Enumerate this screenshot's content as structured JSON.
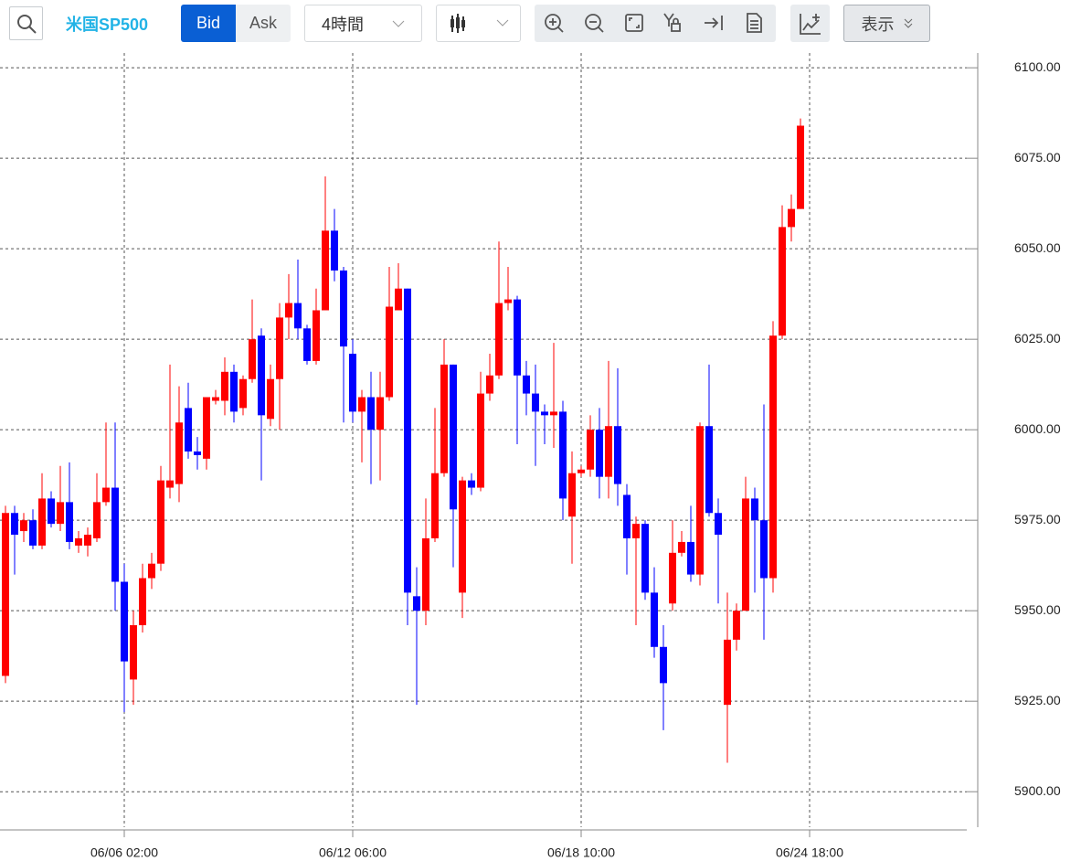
{
  "toolbar": {
    "symbol": "米国SP500",
    "bid": "Bid",
    "ask": "Ask",
    "interval": "4時間",
    "view": "表示"
  },
  "chart_data": {
    "type": "candlestick",
    "categories": [
      null,
      null,
      null,
      null,
      null,
      null,
      null,
      null,
      null,
      null,
      null,
      null,
      null,
      null,
      null,
      null,
      null,
      null,
      null,
      null,
      null,
      null,
      null,
      null,
      null,
      null,
      null,
      null,
      null,
      null,
      null,
      null,
      null,
      null,
      null,
      null,
      null,
      null,
      null,
      null,
      null,
      null,
      null,
      null,
      null,
      null,
      null,
      null,
      null,
      null,
      null,
      null,
      null,
      null,
      null,
      null,
      null,
      null,
      null,
      null,
      null,
      null,
      null,
      null,
      null,
      null,
      null,
      null,
      null,
      null,
      null,
      null,
      null,
      null,
      null,
      null,
      null,
      null,
      null,
      null,
      null,
      null,
      null,
      null,
      null,
      null,
      null,
      null
    ],
    "open": [
      5932,
      5977,
      5972,
      5975,
      5968,
      5981,
      5974,
      5980,
      5968,
      5968,
      5970,
      5980,
      5984,
      5958,
      5931,
      5946,
      5959,
      5963,
      5984,
      5985,
      6006,
      5994,
      5992,
      6008,
      6008,
      6016,
      6006,
      6014,
      6026,
      6003,
      6014,
      6031,
      6035,
      6028,
      6019,
      6033,
      6055,
      6044,
      6021,
      6005,
      6009,
      6000,
      6009,
      6033,
      6039,
      5954,
      5950,
      5970,
      5988,
      6018,
      5955,
      5986,
      5984,
      6010,
      6015,
      6035,
      6036,
      6015,
      6010,
      6005,
      6004,
      6005,
      5976,
      5988,
      5989,
      6000,
      5987,
      6001,
      5982,
      5970,
      5974,
      5955,
      5940,
      5952,
      5966,
      5969,
      5960,
      6001,
      5977,
      5924,
      5942,
      5950,
      5981,
      5975,
      5959,
      6026,
      6056,
      6061
    ],
    "high": [
      5979,
      5979,
      5977,
      5978,
      5988,
      5983,
      5990,
      5991,
      5972,
      5973,
      5988,
      6002,
      6002,
      5963,
      5950,
      5963,
      5966,
      5990,
      6018,
      6012,
      6013,
      5998,
      6009,
      6011,
      6020,
      6018,
      6015,
      6036,
      6028,
      6018,
      6035,
      6043,
      6047,
      6029,
      6039,
      6070,
      6061,
      6045,
      6025,
      6011,
      6016,
      6016,
      6045,
      6046,
      6039,
      5962,
      5981,
      6006,
      6025,
      6018,
      5987,
      5988,
      6016,
      6021,
      6052,
      6045,
      6037,
      6019,
      6018,
      6007,
      6024,
      6008,
      5994,
      5990,
      6004,
      6006,
      6019,
      6017,
      5985,
      5976,
      5975,
      5962,
      5946,
      5975,
      5972,
      5979,
      6002,
      6018,
      5981,
      5955,
      5952,
      5987,
      5984,
      6007,
      6030,
      6062,
      6065,
      6086
    ],
    "low": [
      5930,
      5960,
      5969,
      5967,
      5967,
      5973,
      5972,
      5967,
      5966,
      5965,
      5969,
      5979,
      5950,
      5922,
      5924,
      5944,
      5956,
      5961,
      5981,
      5980,
      5992,
      5989,
      5989,
      6007,
      6004,
      6002,
      6004,
      6013,
      5986,
      6001,
      6000,
      6025,
      6025,
      6018,
      6018,
      6033,
      6041,
      6002,
      6002,
      5991,
      5985,
      5986,
      6008,
      6034,
      5946,
      5924,
      5946,
      5969,
      5987,
      5962,
      5948,
      5982,
      5983,
      6008,
      6014,
      6033,
      5996,
      6004,
      5990,
      5996,
      5995,
      5975,
      5963,
      5987,
      5987,
      5981,
      5981,
      5979,
      5960,
      5946,
      5953,
      5937,
      5917,
      5950,
      5965,
      5958,
      5957,
      5976,
      5952,
      5908,
      5939,
      5950,
      5955,
      5942,
      5955,
      6025,
      6052,
      6061
    ],
    "close": [
      5977,
      5971,
      5975,
      5968,
      5981,
      5974,
      5980,
      5969,
      5970,
      5971,
      5980,
      5984,
      5958,
      5936,
      5946,
      5959,
      5963,
      5986,
      5986,
      6002,
      5994,
      5993,
      6009,
      6009,
      6016,
      6005,
      6014,
      6025,
      6004,
      6014,
      6031,
      6035,
      6028,
      6019,
      6033,
      6055,
      6044,
      6023,
      6005,
      6009,
      6000,
      6009,
      6034,
      6039,
      5955,
      5950,
      5970,
      5988,
      6018,
      5978,
      5986,
      5984,
      6010,
      6015,
      6035,
      6036,
      6015,
      6010,
      6005,
      6004,
      6005,
      5981,
      5988,
      5989,
      6000,
      5987,
      6001,
      5985,
      5970,
      5974,
      5955,
      5940,
      5930,
      5966,
      5969,
      5960,
      6001,
      5977,
      5971,
      5942,
      5950,
      5981,
      5975,
      5959,
      6026,
      6056,
      6061,
      6084
    ],
    "up_color": "#ff0000",
    "down_color": "#0000ff",
    "xlim": [
      -0.6,
      105.2
    ],
    "xticks": [
      {
        "value": 13,
        "label": "06/06 02:00"
      },
      {
        "value": 38,
        "label": "06/12 06:00"
      },
      {
        "value": 63,
        "label": "06/18 10:00"
      },
      {
        "value": 88,
        "label": "06/24 18:00"
      }
    ],
    "ylim": [
      5890.2,
      6106.1
    ],
    "yticks": [
      {
        "value": 5900,
        "label": "5900.00"
      },
      {
        "value": 5925,
        "label": "5925.00"
      },
      {
        "value": 5950,
        "label": "5950.00"
      },
      {
        "value": 5975,
        "label": "5975.00"
      },
      {
        "value": 6000,
        "label": "6000.00"
      },
      {
        "value": 6025,
        "label": "6025.00"
      },
      {
        "value": 6050,
        "label": "6050.00"
      },
      {
        "value": 6075,
        "label": "6075.00"
      },
      {
        "value": 6100,
        "label": "6100.00"
      }
    ],
    "grid": true
  }
}
